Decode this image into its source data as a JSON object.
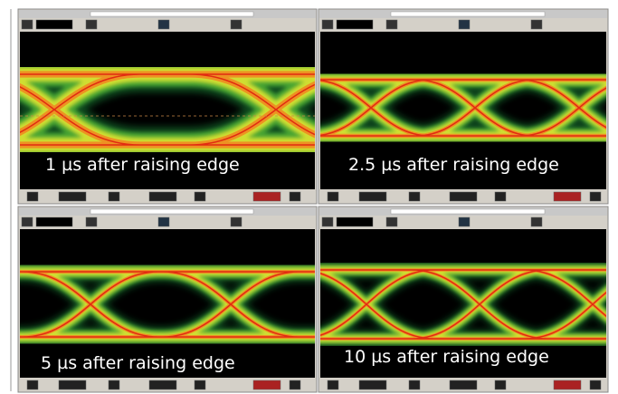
{
  "panels": [
    {
      "caption": "1 µs after raising edge"
    },
    {
      "caption": "2.5 µs after raising edge"
    },
    {
      "caption": "5 µs after raising edge"
    },
    {
      "caption": "10 µs after raising edge"
    }
  ]
}
